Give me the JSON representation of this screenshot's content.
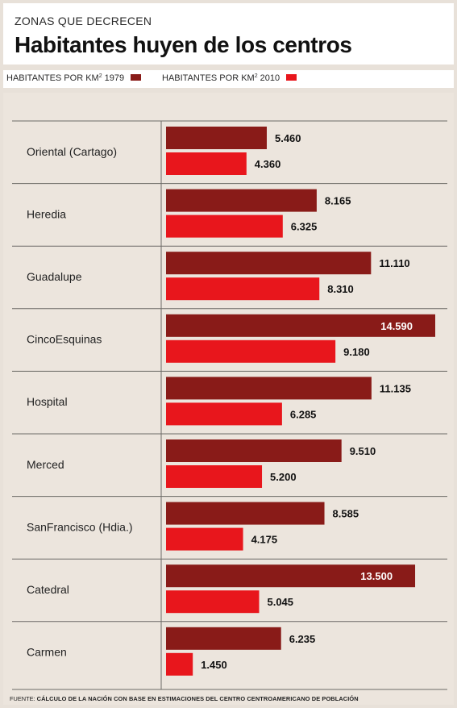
{
  "header": {
    "kicker": "ZONAS QUE DECRECEN",
    "title": "Habitantes huyen de los centros"
  },
  "legend": {
    "label_1979_prefix": "HABITANTES POR KM",
    "label_1979_sup": "2",
    "label_1979_suffix": " 1979",
    "label_2010_prefix": "HABITANTES POR KM",
    "label_2010_sup": "2",
    "label_2010_suffix": " 2010"
  },
  "colors": {
    "series_1979": "#891b18",
    "series_2010": "#e8161c",
    "background": "#ece5dd"
  },
  "footer": {
    "source_label": "FUENTE: ",
    "source_text": "CÁLCULO DE LA NACIÓN CON BASE EN ESTIMACIONES DEL CENTRO CENTROAMERICANO DE POBLACIÓN"
  },
  "chart_data": {
    "type": "bar",
    "orientation": "horizontal",
    "categories": [
      "Oriental (Cartago)",
      "Heredia",
      "Guadalupe",
      "CincoEsquinas",
      "Hospital",
      "Merced",
      "SanFrancisco (Hdia.)",
      "Catedral",
      "Carmen"
    ],
    "series": [
      {
        "name": "HABITANTES POR KM2 1979",
        "values": [
          5460,
          8165,
          11110,
          14590,
          11135,
          9510,
          8585,
          13500,
          6235
        ],
        "labels": [
          "5.460",
          "8.165",
          "11.110",
          "14.590",
          "11.135",
          "9.510",
          "8.585",
          "13.500",
          "6.235"
        ]
      },
      {
        "name": "HABITANTES POR KM2 2010",
        "values": [
          4360,
          6325,
          8310,
          9180,
          6285,
          5200,
          4175,
          5045,
          1450
        ],
        "labels": [
          "4.360",
          "6.325",
          "8.310",
          "9.180",
          "6.285",
          "5.200",
          "4.175",
          "5.045",
          "1.450"
        ]
      }
    ],
    "xlim": [
      0,
      15000
    ],
    "grid": false,
    "legend_position": "top"
  }
}
